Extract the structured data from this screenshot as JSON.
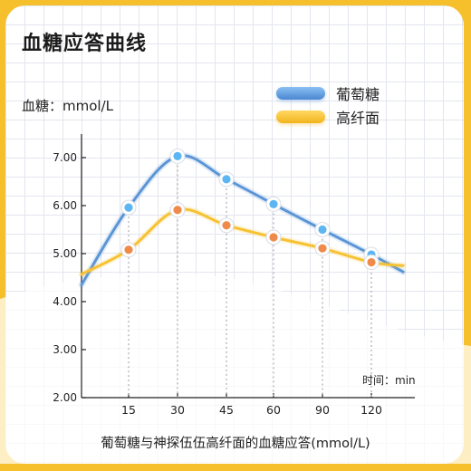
{
  "title": "血糖应答曲线",
  "footer": "葡萄糖与神探伍伍高纤面的血糖应答(mmol/L)",
  "colors": {
    "glucose": "#5b95d6",
    "fiber": "#f7c232",
    "dot_glucose": "#5db6f2",
    "dot_fiber": "#f08a4b"
  },
  "chart_data": {
    "type": "line",
    "title": "血糖应答曲线",
    "ylabel": "血糖：mmol/L",
    "xlabel": "时间：min",
    "ylim": [
      2.0,
      7.0
    ],
    "y_ticks": [
      "2.00",
      "3.00",
      "4.00",
      "5.00",
      "6.00",
      "7.00"
    ],
    "x_ticks": [
      "15",
      "30",
      "45",
      "60",
      "90",
      "120"
    ],
    "legend_position": "top-right",
    "grid": true,
    "series": [
      {
        "name": "葡萄糖",
        "color": "#5b95d6",
        "points": [
          {
            "x": "15",
            "y": 5.96
          },
          {
            "x": "30",
            "y": 7.03
          },
          {
            "x": "45",
            "y": 6.55
          },
          {
            "x": "60",
            "y": 6.03
          },
          {
            "x": "90",
            "y": 5.5
          },
          {
            "x": "120",
            "y": 4.98
          }
        ]
      },
      {
        "name": "高纤面",
        "color": "#f7c232",
        "points": [
          {
            "x": "15",
            "y": 5.08
          },
          {
            "x": "30",
            "y": 5.91
          },
          {
            "x": "45",
            "y": 5.59
          },
          {
            "x": "60",
            "y": 5.34
          },
          {
            "x": "90",
            "y": 5.11
          },
          {
            "x": "120",
            "y": 4.82
          }
        ]
      }
    ]
  }
}
